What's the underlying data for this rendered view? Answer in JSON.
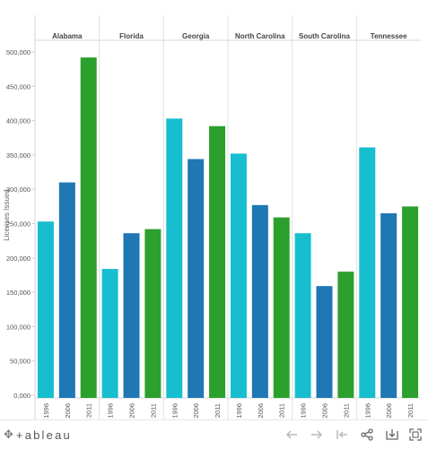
{
  "chart_data": {
    "type": "bar",
    "ylabel": "Licenses Issued",
    "ylim": [
      0,
      520000
    ],
    "yticks": [
      0,
      50000,
      100000,
      150000,
      200000,
      250000,
      300000,
      350000,
      400000,
      450000,
      500000
    ],
    "ytick_labels": [
      "0,000",
      "50,000",
      "100,000",
      "150,000",
      "200,000",
      "250,000",
      "300,000",
      "350,000",
      "400,000",
      "450,000",
      "500,000"
    ],
    "years": [
      "1996",
      "2006",
      "2011"
    ],
    "colors": {
      "1996": "#17becf",
      "2006": "#1f77b4",
      "2011": "#2ca02c"
    },
    "grid": false,
    "panels": [
      {
        "state": "Alabama",
        "values": [
          253000,
          310000,
          492000
        ]
      },
      {
        "state": "Florida",
        "values": [
          184000,
          236000,
          242000
        ]
      },
      {
        "state": "Georgia",
        "values": [
          403000,
          344000,
          392000
        ]
      },
      {
        "state": "North Carolina",
        "values": [
          352000,
          277000,
          259000
        ]
      },
      {
        "state": "South Carolina",
        "values": [
          236000,
          159000,
          180000
        ]
      },
      {
        "state": "Tennessee",
        "values": [
          361000,
          265000,
          275000
        ]
      }
    ]
  },
  "toolbar": {
    "brand": "+ableau",
    "icons": [
      "back-arrow-icon",
      "forward-arrow-icon",
      "revert-icon",
      "share-icon",
      "download-icon",
      "fullscreen-icon"
    ]
  }
}
